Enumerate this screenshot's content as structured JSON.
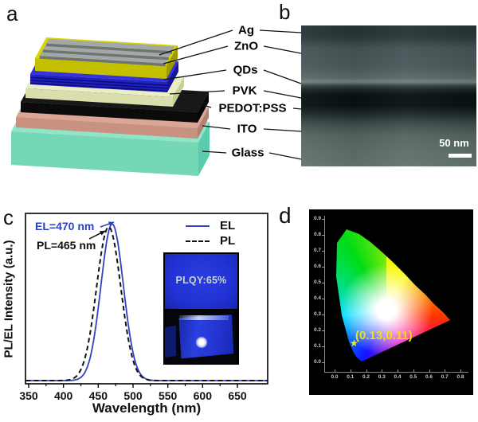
{
  "panel_a": {
    "label": "a",
    "layers": [
      {
        "label": "Ag",
        "top": "#a2a8a8",
        "front": "#6e7474",
        "side": "#6e7474"
      },
      {
        "label": "ZnO",
        "top": "#d9d600",
        "front": "#c4c000",
        "side": "#9d9a00"
      },
      {
        "label": "QDs",
        "top": "#3434d8",
        "front": "#2222c4",
        "side": "#15159e",
        "stripe": "#0c0c78"
      },
      {
        "label": "PVK",
        "top": "#eaeec6",
        "front": "#d9deac",
        "side": "#c7ce98"
      },
      {
        "label": "PEDOT:PSS",
        "top": "#181818",
        "front": "#0b0b0b",
        "side": "#060606"
      },
      {
        "label": "ITO",
        "top": "#dba695",
        "front": "#c99180",
        "side": "#b5816f"
      },
      {
        "label": "Glass",
        "top": "#90e4c8",
        "front": "#74d7b6",
        "side": "#5accab"
      }
    ]
  },
  "panel_b": {
    "label": "b",
    "scale_bar_text": "50 nm"
  },
  "panel_c": {
    "label": "c",
    "xlabel": "Wavelength (nm)",
    "ylabel": "PL/EL Intensity (a.u.)",
    "legend": [
      {
        "name": "EL",
        "style": "solid",
        "color": "#3042c4"
      },
      {
        "name": "PL",
        "style": "dashed",
        "color": "#111111"
      }
    ],
    "annotation_el": "EL=470 nm",
    "annotation_pl": "PL=465 nm",
    "inset": {
      "plqy_text": "PLQY:65%"
    }
  },
  "panel_d": {
    "label": "d",
    "x_ticks": [
      "0.0",
      "0.1",
      "0.2",
      "0.3",
      "0.4",
      "0.5",
      "0.6",
      "0.7",
      "0.8"
    ],
    "y_ticks": [
      "0.9",
      "0.8",
      "0.7",
      "0.6",
      "0.5",
      "0.4",
      "0.3",
      "0.2",
      "0.1",
      "0.0"
    ],
    "annotation": "(0.13,0.11)",
    "star_glyph": "★",
    "annotation_color": "#f0e400"
  },
  "chart_data": [
    {
      "type": "line",
      "title": "PL and EL spectra",
      "xlabel": "Wavelength (nm)",
      "ylabel": "PL/EL Intensity (a.u.)",
      "xlim": [
        350,
        650
      ],
      "x_ticks": [
        350,
        400,
        450,
        500,
        550,
        600,
        650
      ],
      "x_minor_ticks": [
        375,
        425,
        475,
        525,
        575,
        625
      ],
      "ylim": [
        0,
        1.05
      ],
      "grid": false,
      "legend_position": "top-right",
      "series": [
        {
          "name": "EL",
          "shape": "gaussian",
          "peak_nm": 470,
          "fwhm_nm": 38,
          "height": 1.0,
          "style": "solid",
          "color": "#3042c4"
        },
        {
          "name": "PL",
          "shape": "gaussian",
          "peak_nm": 465,
          "fwhm_nm": 41,
          "height": 0.98,
          "style": "dashed",
          "color": "#111111"
        }
      ],
      "annotations": [
        "EL=470 nm",
        "PL=465 nm"
      ]
    },
    {
      "type": "scatter",
      "title": "CIE 1931 chromaticity diagram",
      "xlim": [
        0.0,
        0.8
      ],
      "ylim": [
        0.0,
        0.9
      ],
      "x_ticks": [
        0.0,
        0.1,
        0.2,
        0.3,
        0.4,
        0.5,
        0.6,
        0.7,
        0.8
      ],
      "y_ticks": [
        0.0,
        0.1,
        0.2,
        0.3,
        0.4,
        0.5,
        0.6,
        0.7,
        0.8,
        0.9
      ],
      "points": [
        {
          "x": 0.13,
          "y": 0.11,
          "label": "(0.13,0.11)",
          "marker": "star",
          "color": "#f2ef30"
        }
      ]
    }
  ]
}
